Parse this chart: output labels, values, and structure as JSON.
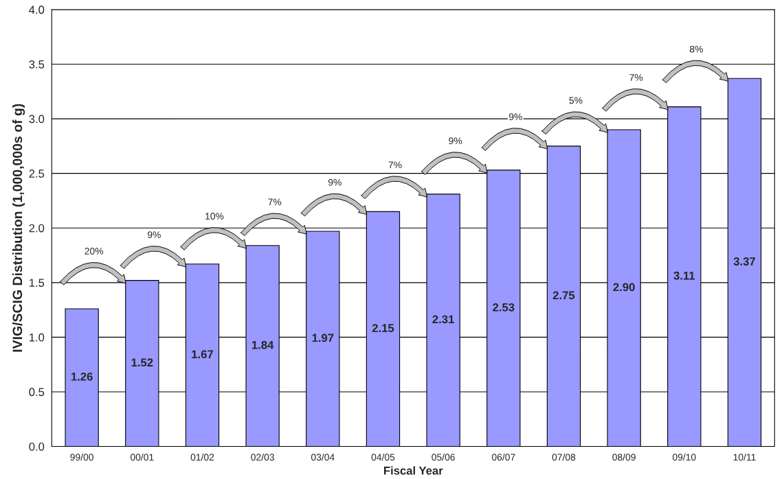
{
  "chart_data": {
    "type": "bar",
    "xlabel": "Fiscal Year",
    "ylabel": "IVIG/SCIG Distribution (1,000,000s of g)",
    "categories": [
      "99/00",
      "00/01",
      "01/02",
      "02/03",
      "03/04",
      "04/05",
      "05/06",
      "06/07",
      "07/08",
      "08/09",
      "09/10",
      "10/11"
    ],
    "values": [
      1.26,
      1.52,
      1.67,
      1.84,
      1.97,
      2.15,
      2.31,
      2.53,
      2.75,
      2.9,
      3.11,
      3.37
    ],
    "color": "#9999ff",
    "ylim": [
      0,
      4
    ],
    "yticks": [
      {
        "value": 0,
        "label": "0.0"
      },
      {
        "value": 0.5,
        "label": "0.5"
      },
      {
        "value": 1,
        "label": "1.0"
      },
      {
        "value": 1.5,
        "label": "1.5"
      },
      {
        "value": 2,
        "label": "2.0"
      },
      {
        "value": 2.5,
        "label": "2.5"
      },
      {
        "value": 3,
        "label": "3.0"
      },
      {
        "value": 3.5,
        "label": "3.5"
      },
      {
        "value": 4,
        "label": "4.0"
      }
    ],
    "value_labels": [
      "1.26",
      "1.52",
      "1.67",
      "1.84",
      "1.97",
      "2.15",
      "2.31",
      "2.53",
      "2.75",
      "2.90",
      "3.11",
      "3.37"
    ],
    "annotations": [
      "20%",
      "9%",
      "10%",
      "7%",
      "9%",
      "7%",
      "9%",
      "9%",
      "5%",
      "7%",
      "8%"
    ],
    "grid": "y",
    "legend": false
  }
}
